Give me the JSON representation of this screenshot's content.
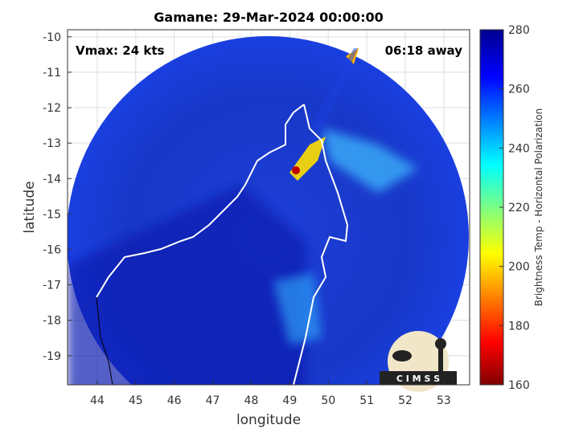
{
  "chart_data": {
    "type": "map",
    "title": "Gamane: 29-Mar-2024 00:00:00",
    "annotations": [
      "Vmax: 24 kts",
      "06:18 away"
    ],
    "x_label": "longitude",
    "y_label": "latitude",
    "xlim": [
      43.23,
      53.67
    ],
    "xticks": [
      44,
      45,
      46,
      47,
      48,
      49,
      50,
      51,
      52,
      53
    ],
    "ylim": [
      -19.82,
      -9.8
    ],
    "yticks": [
      -10,
      -11,
      -12,
      -13,
      -14,
      -15,
      -16,
      -17,
      -18,
      -19
    ],
    "grid": true,
    "colorbar": {
      "label": "Brightness Temp - Horizontal Polarization",
      "lim": [
        160,
        280
      ],
      "ticks": [
        160,
        180,
        200,
        220,
        240,
        260,
        280
      ]
    },
    "logo": "C I M S S"
  }
}
